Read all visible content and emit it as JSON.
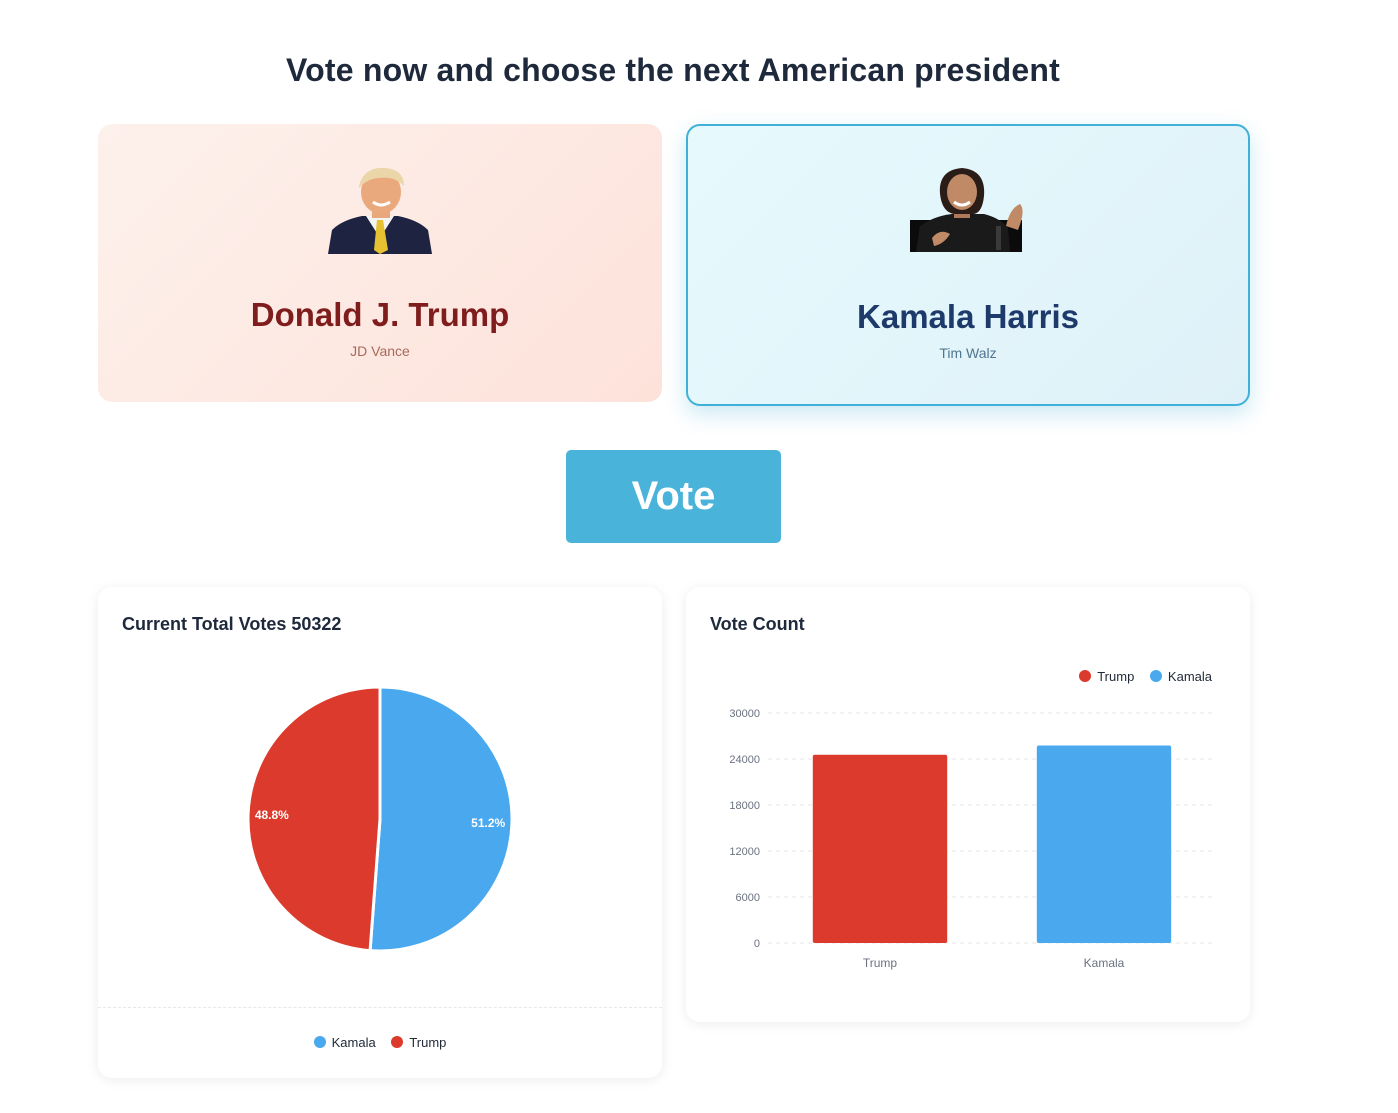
{
  "header": {
    "title": "Vote now and choose the next American president"
  },
  "candidates": [
    {
      "id": "trump",
      "name": "Donald J. Trump",
      "running_mate": "JD Vance",
      "selected": false,
      "color": "#7f1d1d"
    },
    {
      "id": "harris",
      "name": "Kamala Harris",
      "running_mate": "Tim Walz",
      "selected": true,
      "color": "#1e3a6b"
    }
  ],
  "vote_button": {
    "label": "Vote",
    "color": "#4ab3d9"
  },
  "pie_panel": {
    "title": "Current Total Votes 50322",
    "legend": [
      {
        "label": "Kamala",
        "color": "#4aa8ee"
      },
      {
        "label": "Trump",
        "color": "#dc3a2c"
      }
    ]
  },
  "bar_panel": {
    "title": "Vote Count",
    "legend": [
      {
        "label": "Trump",
        "color": "#dc3a2c"
      },
      {
        "label": "Kamala",
        "color": "#4aa8ee"
      }
    ]
  },
  "chart_data": [
    {
      "type": "pie",
      "title": "Current Total Votes 50322",
      "categories": [
        "Kamala",
        "Trump"
      ],
      "values": [
        51.2,
        48.8
      ],
      "value_labels": [
        "51.2%",
        "48.8%"
      ],
      "colors": [
        "#4aa8ee",
        "#dc3a2c"
      ],
      "legend_position": "bottom"
    },
    {
      "type": "bar",
      "title": "Vote Count",
      "categories": [
        "Trump",
        "Kamala"
      ],
      "values": [
        24557,
        25765
      ],
      "colors": [
        "#dc3a2c",
        "#4aa8ee"
      ],
      "ylim": [
        0,
        30000
      ],
      "yticks": [
        "0",
        "6000",
        "12000",
        "18000",
        "24000",
        "30000"
      ],
      "grid": true,
      "legend_position": "top-right"
    }
  ]
}
